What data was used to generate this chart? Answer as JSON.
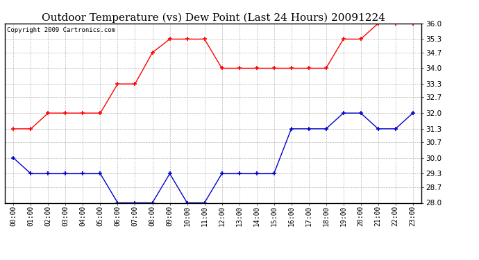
{
  "title": "Outdoor Temperature (vs) Dew Point (Last 24 Hours) 20091224",
  "copyright": "Copyright 2009 Cartronics.com",
  "x_labels": [
    "00:00",
    "01:00",
    "02:00",
    "03:00",
    "04:00",
    "05:00",
    "06:00",
    "07:00",
    "08:00",
    "09:00",
    "10:00",
    "11:00",
    "12:00",
    "13:00",
    "14:00",
    "15:00",
    "16:00",
    "17:00",
    "18:00",
    "19:00",
    "20:00",
    "21:00",
    "22:00",
    "23:00"
  ],
  "red_data": [
    31.3,
    31.3,
    32.0,
    32.0,
    32.0,
    32.0,
    33.3,
    33.3,
    34.7,
    35.3,
    35.3,
    35.3,
    34.0,
    34.0,
    34.0,
    34.0,
    34.0,
    34.0,
    34.0,
    35.3,
    35.3,
    36.0,
    36.0,
    36.0
  ],
  "blue_data": [
    30.0,
    29.3,
    29.3,
    29.3,
    29.3,
    29.3,
    28.0,
    28.0,
    28.0,
    29.3,
    28.0,
    28.0,
    29.3,
    29.3,
    29.3,
    29.3,
    31.3,
    31.3,
    31.3,
    32.0,
    32.0,
    31.3,
    31.3,
    32.0
  ],
  "ylim": [
    28.0,
    36.0
  ],
  "yticks": [
    28.0,
    28.7,
    29.3,
    30.0,
    30.7,
    31.3,
    32.0,
    32.7,
    33.3,
    34.0,
    34.7,
    35.3,
    36.0
  ],
  "red_color": "#ff0000",
  "blue_color": "#0000cc",
  "background_color": "#ffffff",
  "grid_color": "#bbbbbb",
  "title_fontsize": 11,
  "copyright_fontsize": 6.5,
  "tick_fontsize": 7,
  "ytick_fontsize": 7.5
}
